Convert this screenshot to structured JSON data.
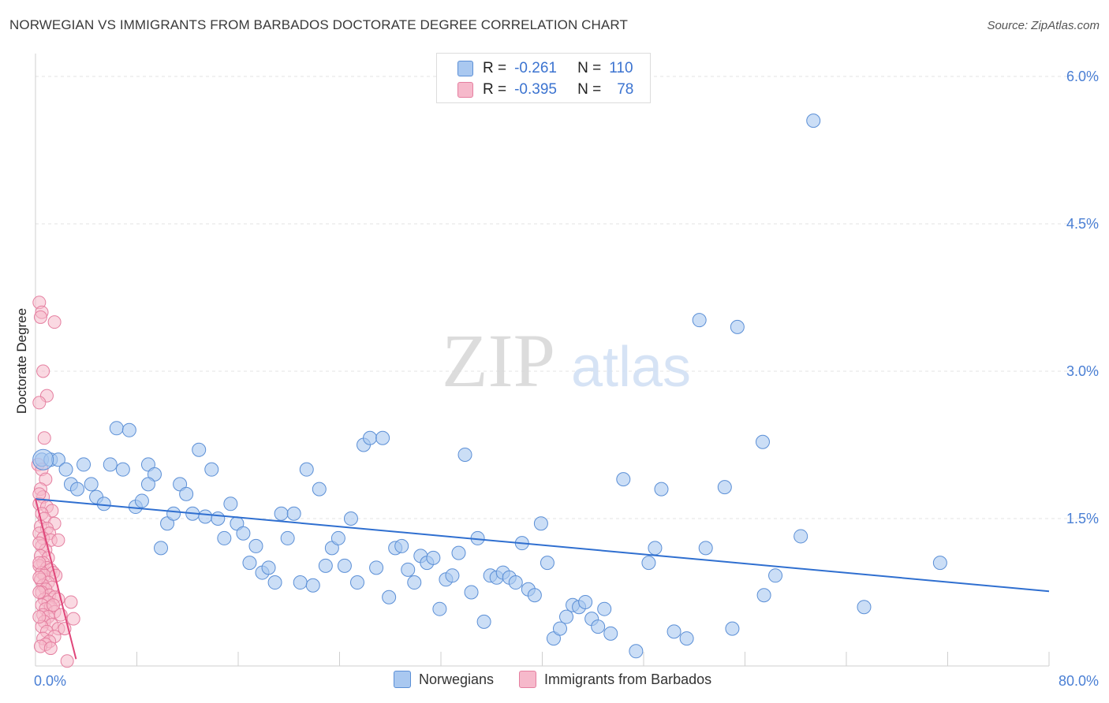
{
  "header": {
    "title": "NORWEGIAN VS IMMIGRANTS FROM BARBADOS DOCTORATE DEGREE CORRELATION CHART",
    "source": "Source: ZipAtlas.com"
  },
  "watermark": {
    "zip": "ZIP",
    "atlas": "atlas"
  },
  "legend": {
    "rows": [
      {
        "r_label": "R =",
        "r_value": "-0.261",
        "n_label": "N =",
        "n_value": "110"
      },
      {
        "r_label": "R =",
        "r_value": "-0.395",
        "n_label": "N =",
        "n_value": "78"
      }
    ]
  },
  "bottom_legend": {
    "series1": "Norwegians",
    "series2": "Immigrants from Barbados"
  },
  "colors": {
    "blue_fill": "#a9c8f0",
    "blue_stroke": "#5b8fd6",
    "blue_line": "#2f6fd0",
    "pink_fill": "#f6b9cb",
    "pink_stroke": "#e57fa0",
    "pink_line": "#e0467a",
    "grid": "#e3e3e3",
    "tick_text": "#4a7fd4"
  },
  "chart_data": {
    "type": "scatter",
    "title": "NORWEGIAN VS IMMIGRANTS FROM BARBADOS DOCTORATE DEGREE CORRELATION CHART",
    "xlabel": "",
    "ylabel": "Doctorate Degree",
    "xlim": [
      0,
      80
    ],
    "ylim": [
      0,
      6.3
    ],
    "x_tick_labels": [
      "0.0%",
      "80.0%"
    ],
    "y_ticks": [
      1.5,
      3.0,
      4.5,
      6.0
    ],
    "y_tick_labels": [
      "1.5%",
      "3.0%",
      "4.5%",
      "6.0%"
    ],
    "grid": true,
    "series": [
      {
        "name": "Norwegians",
        "R": -0.261,
        "N": 110,
        "trend": {
          "x": [
            0,
            80
          ],
          "y": [
            1.7,
            0.76
          ]
        },
        "points": [
          [
            0.5,
            2.1
          ],
          [
            1.2,
            2.1
          ],
          [
            1.8,
            2.1
          ],
          [
            2.4,
            2.0
          ],
          [
            2.8,
            1.85
          ],
          [
            3.3,
            1.8
          ],
          [
            3.8,
            2.05
          ],
          [
            4.4,
            1.85
          ],
          [
            4.8,
            1.72
          ],
          [
            5.4,
            1.65
          ],
          [
            5.9,
            2.05
          ],
          [
            6.4,
            2.42
          ],
          [
            6.9,
            2.0
          ],
          [
            7.4,
            2.4
          ],
          [
            7.9,
            1.62
          ],
          [
            8.4,
            1.68
          ],
          [
            8.9,
            2.05
          ],
          [
            9.4,
            1.95
          ],
          [
            9.9,
            1.2
          ],
          [
            10.4,
            1.45
          ],
          [
            10.9,
            1.55
          ],
          [
            11.4,
            1.85
          ],
          [
            11.9,
            1.75
          ],
          [
            12.4,
            1.55
          ],
          [
            12.9,
            2.2
          ],
          [
            13.4,
            1.52
          ],
          [
            13.9,
            2.0
          ],
          [
            14.4,
            1.5
          ],
          [
            14.9,
            1.3
          ],
          [
            15.4,
            1.65
          ],
          [
            15.9,
            1.45
          ],
          [
            16.4,
            1.35
          ],
          [
            16.9,
            1.05
          ],
          [
            17.4,
            1.22
          ],
          [
            17.9,
            0.95
          ],
          [
            18.4,
            1.0
          ],
          [
            18.9,
            0.85
          ],
          [
            19.4,
            1.55
          ],
          [
            19.9,
            1.3
          ],
          [
            20.4,
            1.55
          ],
          [
            20.9,
            0.85
          ],
          [
            21.4,
            2.0
          ],
          [
            21.9,
            0.82
          ],
          [
            22.4,
            1.8
          ],
          [
            22.9,
            1.02
          ],
          [
            23.4,
            1.2
          ],
          [
            23.9,
            1.3
          ],
          [
            24.4,
            1.02
          ],
          [
            24.9,
            1.5
          ],
          [
            25.4,
            0.85
          ],
          [
            25.9,
            2.25
          ],
          [
            26.4,
            2.32
          ],
          [
            26.9,
            1.0
          ],
          [
            27.4,
            2.32
          ],
          [
            27.9,
            0.7
          ],
          [
            28.4,
            1.2
          ],
          [
            28.9,
            1.22
          ],
          [
            29.4,
            0.98
          ],
          [
            29.9,
            0.85
          ],
          [
            30.4,
            1.12
          ],
          [
            30.9,
            1.05
          ],
          [
            31.4,
            1.1
          ],
          [
            31.9,
            0.58
          ],
          [
            32.4,
            0.88
          ],
          [
            32.9,
            0.92
          ],
          [
            33.4,
            1.15
          ],
          [
            33.9,
            2.15
          ],
          [
            34.4,
            0.75
          ],
          [
            34.9,
            1.3
          ],
          [
            35.4,
            0.45
          ],
          [
            35.9,
            0.92
          ],
          [
            36.4,
            0.9
          ],
          [
            36.9,
            0.95
          ],
          [
            37.4,
            0.9
          ],
          [
            37.9,
            0.85
          ],
          [
            38.4,
            1.25
          ],
          [
            38.9,
            0.78
          ],
          [
            39.4,
            0.72
          ],
          [
            39.9,
            1.45
          ],
          [
            40.4,
            1.05
          ],
          [
            40.9,
            0.28
          ],
          [
            41.4,
            0.38
          ],
          [
            41.9,
            0.5
          ],
          [
            42.4,
            0.62
          ],
          [
            42.9,
            0.6
          ],
          [
            43.4,
            0.65
          ],
          [
            43.9,
            0.48
          ],
          [
            44.4,
            0.4
          ],
          [
            44.9,
            0.58
          ],
          [
            45.4,
            0.33
          ],
          [
            46.4,
            1.9
          ],
          [
            47.4,
            0.15
          ],
          [
            48.4,
            1.05
          ],
          [
            48.9,
            1.2
          ],
          [
            49.4,
            1.8
          ],
          [
            50.4,
            0.35
          ],
          [
            51.4,
            0.28
          ],
          [
            52.4,
            3.52
          ],
          [
            52.9,
            1.2
          ],
          [
            54.4,
            1.82
          ],
          [
            55.4,
            3.45
          ],
          [
            55.0,
            0.38
          ],
          [
            57.4,
            2.28
          ],
          [
            57.5,
            0.72
          ],
          [
            58.4,
            0.92
          ],
          [
            60.4,
            1.32
          ],
          [
            61.4,
            5.55
          ],
          [
            65.4,
            0.6
          ],
          [
            71.4,
            1.05
          ],
          [
            8.9,
            1.85
          ]
        ]
      },
      {
        "name": "Immigrants from Barbados",
        "R": -0.395,
        "N": 78,
        "trend": {
          "x": [
            0,
            3.2
          ],
          "y": [
            1.7,
            0.07
          ]
        },
        "points": [
          [
            0.3,
            3.7
          ],
          [
            0.5,
            3.6
          ],
          [
            0.4,
            3.55
          ],
          [
            1.5,
            3.5
          ],
          [
            0.6,
            3.0
          ],
          [
            0.9,
            2.75
          ],
          [
            0.3,
            2.68
          ],
          [
            0.7,
            2.32
          ],
          [
            0.2,
            2.05
          ],
          [
            0.5,
            2.0
          ],
          [
            0.8,
            1.9
          ],
          [
            0.4,
            1.8
          ],
          [
            0.6,
            1.72
          ],
          [
            0.3,
            1.65
          ],
          [
            0.9,
            1.62
          ],
          [
            1.3,
            1.58
          ],
          [
            0.5,
            1.55
          ],
          [
            0.7,
            1.5
          ],
          [
            1.5,
            1.45
          ],
          [
            0.4,
            1.42
          ],
          [
            0.9,
            1.4
          ],
          [
            0.3,
            1.35
          ],
          [
            1.1,
            1.35
          ],
          [
            0.6,
            1.3
          ],
          [
            1.2,
            1.28
          ],
          [
            1.8,
            1.28
          ],
          [
            0.5,
            1.22
          ],
          [
            0.8,
            1.18
          ],
          [
            0.4,
            1.12
          ],
          [
            1.0,
            1.1
          ],
          [
            0.6,
            1.05
          ],
          [
            0.3,
            1.02
          ],
          [
            0.9,
            1.0
          ],
          [
            1.2,
            0.98
          ],
          [
            0.5,
            0.95
          ],
          [
            1.4,
            0.95
          ],
          [
            0.7,
            0.92
          ],
          [
            1.6,
            0.92
          ],
          [
            0.4,
            0.88
          ],
          [
            1.0,
            0.85
          ],
          [
            0.6,
            0.82
          ],
          [
            1.3,
            0.8
          ],
          [
            0.8,
            0.78
          ],
          [
            0.5,
            0.75
          ],
          [
            1.1,
            0.72
          ],
          [
            1.5,
            0.7
          ],
          [
            0.7,
            0.68
          ],
          [
            1.8,
            0.68
          ],
          [
            1.0,
            0.65
          ],
          [
            2.8,
            0.65
          ],
          [
            0.5,
            0.62
          ],
          [
            1.2,
            0.6
          ],
          [
            0.8,
            0.58
          ],
          [
            1.5,
            0.55
          ],
          [
            0.6,
            0.52
          ],
          [
            2.0,
            0.52
          ],
          [
            1.0,
            0.5
          ],
          [
            3.0,
            0.48
          ],
          [
            0.7,
            0.45
          ],
          [
            1.3,
            0.42
          ],
          [
            0.5,
            0.4
          ],
          [
            1.8,
            0.38
          ],
          [
            2.3,
            0.38
          ],
          [
            0.9,
            0.35
          ],
          [
            1.5,
            0.3
          ],
          [
            0.6,
            0.28
          ],
          [
            1.1,
            0.25
          ],
          [
            0.8,
            0.22
          ],
          [
            0.4,
            0.2
          ],
          [
            1.2,
            0.18
          ],
          [
            2.5,
            0.05
          ],
          [
            0.3,
            0.75
          ],
          [
            0.3,
            0.5
          ],
          [
            0.3,
            1.25
          ],
          [
            0.3,
            1.05
          ],
          [
            0.3,
            1.75
          ],
          [
            0.3,
            0.9
          ],
          [
            1.4,
            0.62
          ]
        ]
      }
    ]
  }
}
